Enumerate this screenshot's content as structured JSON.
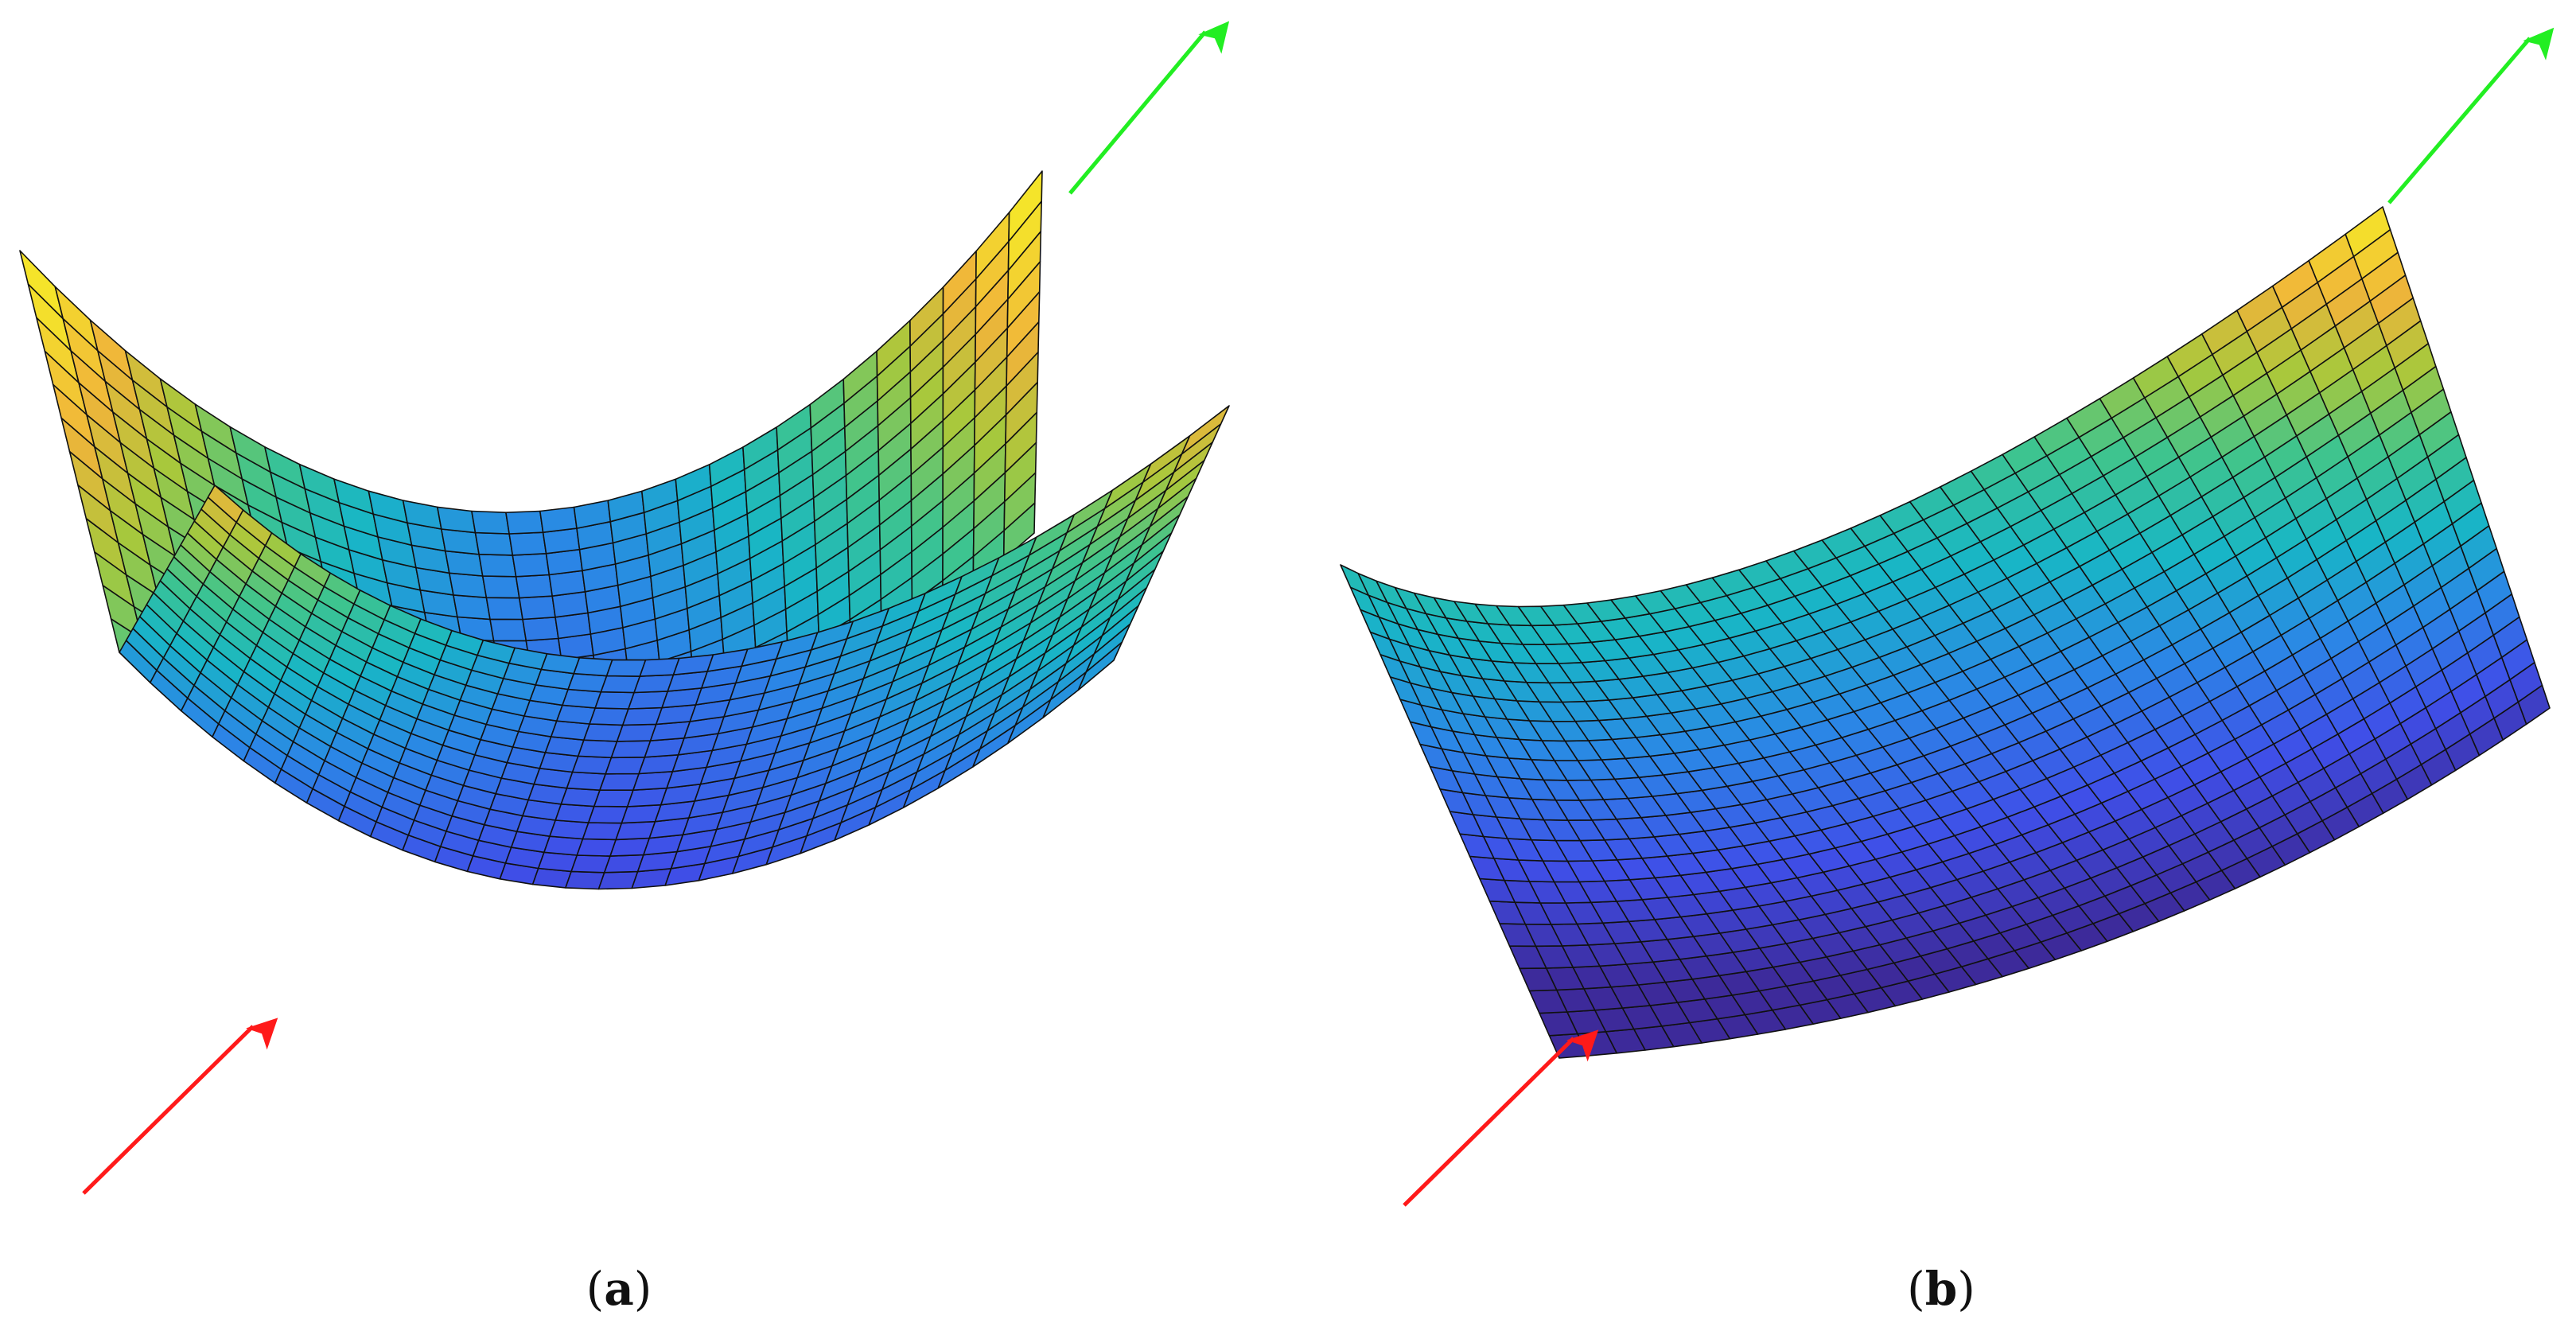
{
  "panels": [
    {
      "id": "a",
      "caption_open": "(",
      "caption_letter": "a",
      "caption_close": ")",
      "surface": "double-sheet"
    },
    {
      "id": "b",
      "caption_open": "(",
      "caption_letter": "b",
      "caption_close": ")",
      "surface": "single-sheet"
    }
  ],
  "colors": {
    "incoming_arrow": "#ff1a1a",
    "outgoing_arrow": "#22ee22",
    "mesh_line": "#111111",
    "colormap": [
      "#3d2a9a",
      "#3f4fe8",
      "#2b86e6",
      "#18b6c6",
      "#3ec48e",
      "#a8c83c",
      "#f0b43a",
      "#f5e42a"
    ]
  },
  "icons": [
    "incoming-arrow",
    "outgoing-arrow"
  ]
}
